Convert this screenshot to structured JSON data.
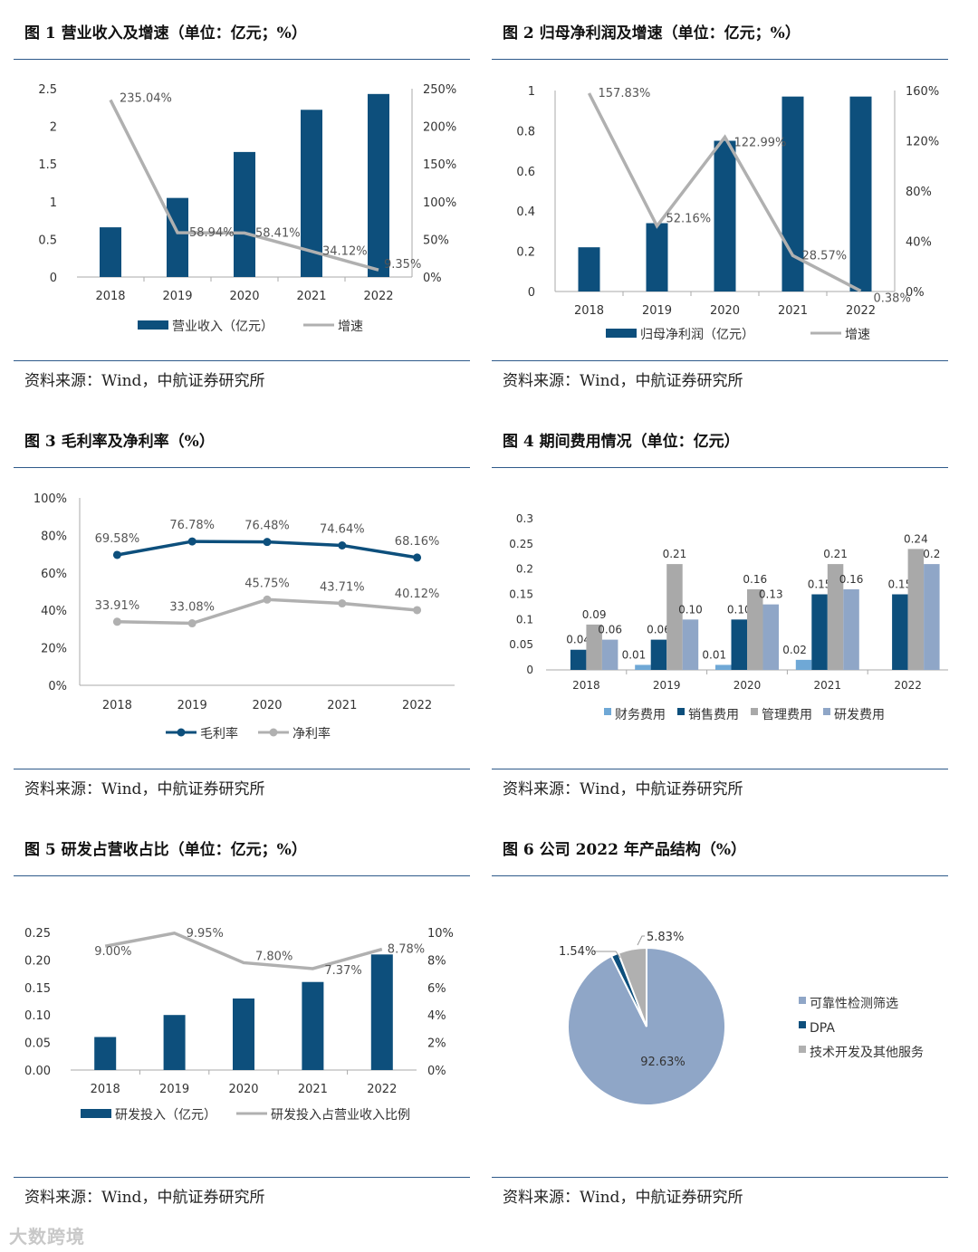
{
  "colors": {
    "navy": "#0d4f7c",
    "gray": "#b0b0b0",
    "lightblue": "#6fa8d6",
    "steel": "#8fa6c7",
    "rule": "#2e5a8a"
  },
  "panels": [
    {
      "title": "图 1 营业收入及增速（单位：亿元；%）",
      "source": "资料来源：Wind，中航证券研究所"
    },
    {
      "title": "图 2 归母净利润及增速（单位：亿元；%）",
      "source": "资料来源：Wind，中航证券研究所"
    },
    {
      "title": "图 3 毛利率及净利率（%）",
      "source": "资料来源：Wind，中航证券研究所"
    },
    {
      "title": "图 4 期间费用情况（单位：亿元）",
      "source": "资料来源：Wind，中航证券研究所"
    },
    {
      "title": "图 5 研发占营收占比（单位：亿元；%）",
      "source": "资料来源：Wind，中航证券研究所"
    },
    {
      "title": "图 6 公司 2022 年产品结构（%）",
      "source": "资料来源：Wind，中航证券研究所"
    }
  ],
  "chart_data": [
    {
      "type": "bar+line",
      "title": "营业收入及增速",
      "categories": [
        "2018",
        "2019",
        "2020",
        "2021",
        "2022"
      ],
      "series": [
        {
          "name": "营业收入（亿元）",
          "type": "bar",
          "values": [
            0.66,
            1.05,
            1.66,
            2.22,
            2.43
          ]
        },
        {
          "name": "增速",
          "type": "line",
          "values": [
            235.04,
            58.94,
            58.41,
            34.12,
            9.35
          ],
          "labels": [
            "235.04%",
            "58.94%",
            "58.41%",
            "34.12%",
            "9.35%"
          ]
        }
      ],
      "y_left": {
        "ticks": [
          "0",
          "0.5",
          "1",
          "1.5",
          "2",
          "2.5"
        ],
        "min": 0,
        "max": 2.5
      },
      "y_right": {
        "ticks": [
          "0%",
          "50%",
          "100%",
          "150%",
          "200%",
          "250%"
        ],
        "min": 0,
        "max": 250
      }
    },
    {
      "type": "bar+line",
      "title": "归母净利润及增速",
      "categories": [
        "2018",
        "2019",
        "2020",
        "2021",
        "2022"
      ],
      "series": [
        {
          "name": "归母净利润（亿元）",
          "type": "bar",
          "values": [
            0.22,
            0.34,
            0.75,
            0.97,
            0.97
          ]
        },
        {
          "name": "增速",
          "type": "line",
          "values": [
            157.83,
            52.16,
            122.99,
            28.57,
            0.38
          ],
          "labels": [
            "157.83%",
            "52.16%",
            "122.99%",
            "28.57%",
            "0.38%"
          ]
        }
      ],
      "y_left": {
        "ticks": [
          "0",
          "0.2",
          "0.4",
          "0.6",
          "0.8",
          "1"
        ],
        "min": 0,
        "max": 1
      },
      "y_right": {
        "ticks": [
          "0%",
          "40%",
          "80%",
          "120%",
          "160%"
        ],
        "min": 0,
        "max": 160
      }
    },
    {
      "type": "line",
      "title": "毛利率及净利率",
      "categories": [
        "2018",
        "2019",
        "2020",
        "2021",
        "2022"
      ],
      "series": [
        {
          "name": "毛利率",
          "values": [
            69.58,
            76.78,
            76.48,
            74.64,
            68.16
          ],
          "labels": [
            "69.58%",
            "76.78%",
            "76.48%",
            "74.64%",
            "68.16%"
          ]
        },
        {
          "name": "净利率",
          "values": [
            33.91,
            33.08,
            45.75,
            43.71,
            40.12
          ],
          "labels": [
            "33.91%",
            "33.08%",
            "45.75%",
            "43.71%",
            "40.12%"
          ]
        }
      ],
      "y": {
        "ticks": [
          "0%",
          "20%",
          "40%",
          "60%",
          "80%",
          "100%"
        ],
        "min": 0,
        "max": 100
      }
    },
    {
      "type": "bar",
      "title": "期间费用情况",
      "categories": [
        "2018",
        "2019",
        "2020",
        "2021",
        "2022"
      ],
      "series": [
        {
          "name": "财务费用",
          "values": [
            0.0,
            0.01,
            0.01,
            0.02,
            0.0
          ],
          "labels": [
            "",
            "0.01",
            "0.01",
            "0.02",
            ""
          ]
        },
        {
          "name": "销售费用",
          "values": [
            0.04,
            0.06,
            0.1,
            0.15,
            0.15
          ],
          "labels": [
            "0.04",
            "0.06",
            "0.10",
            "0.15",
            "0.15"
          ]
        },
        {
          "name": "管理费用",
          "values": [
            0.09,
            0.21,
            0.16,
            0.21,
            0.24
          ],
          "labels": [
            "0.09",
            "0.21",
            "0.16",
            "0.21",
            "0.24"
          ]
        },
        {
          "name": "研发费用",
          "values": [
            0.06,
            0.1,
            0.13,
            0.16,
            0.21
          ],
          "labels": [
            "0.06",
            "0.10",
            "0.13",
            "0.16",
            "0.2"
          ]
        }
      ],
      "y": {
        "ticks": [
          "0",
          "0.05",
          "0.1",
          "0.15",
          "0.2",
          "0.25",
          "0.3"
        ],
        "min": 0,
        "max": 0.3
      }
    },
    {
      "type": "bar+line",
      "title": "研发占营收占比",
      "categories": [
        "2018",
        "2019",
        "2020",
        "2021",
        "2022"
      ],
      "series": [
        {
          "name": "研发投入（亿元）",
          "type": "bar",
          "values": [
            0.06,
            0.1,
            0.13,
            0.16,
            0.21
          ]
        },
        {
          "name": "研发投入占营业收入比例",
          "type": "line",
          "values": [
            9.0,
            9.95,
            7.8,
            7.37,
            8.78
          ],
          "labels": [
            "9.00%",
            "9.95%",
            "7.80%",
            "7.37%",
            "8.78%"
          ]
        }
      ],
      "y_left": {
        "ticks": [
          "0.00",
          "0.05",
          "0.10",
          "0.15",
          "0.20",
          "0.25"
        ],
        "min": 0,
        "max": 0.25
      },
      "y_right": {
        "ticks": [
          "0%",
          "2%",
          "4%",
          "6%",
          "8%",
          "10%"
        ],
        "min": 0,
        "max": 10
      }
    },
    {
      "type": "pie",
      "title": "公司2022年产品结构",
      "slices": [
        {
          "name": "可靠性检测筛选",
          "value": 92.63,
          "label": "92.63%"
        },
        {
          "name": "DPA",
          "value": 1.54,
          "label": "1.54%"
        },
        {
          "name": "技术开发及其他服务",
          "value": 5.83,
          "label": "5.83%"
        }
      ]
    }
  ],
  "watermark": "大数跨境"
}
